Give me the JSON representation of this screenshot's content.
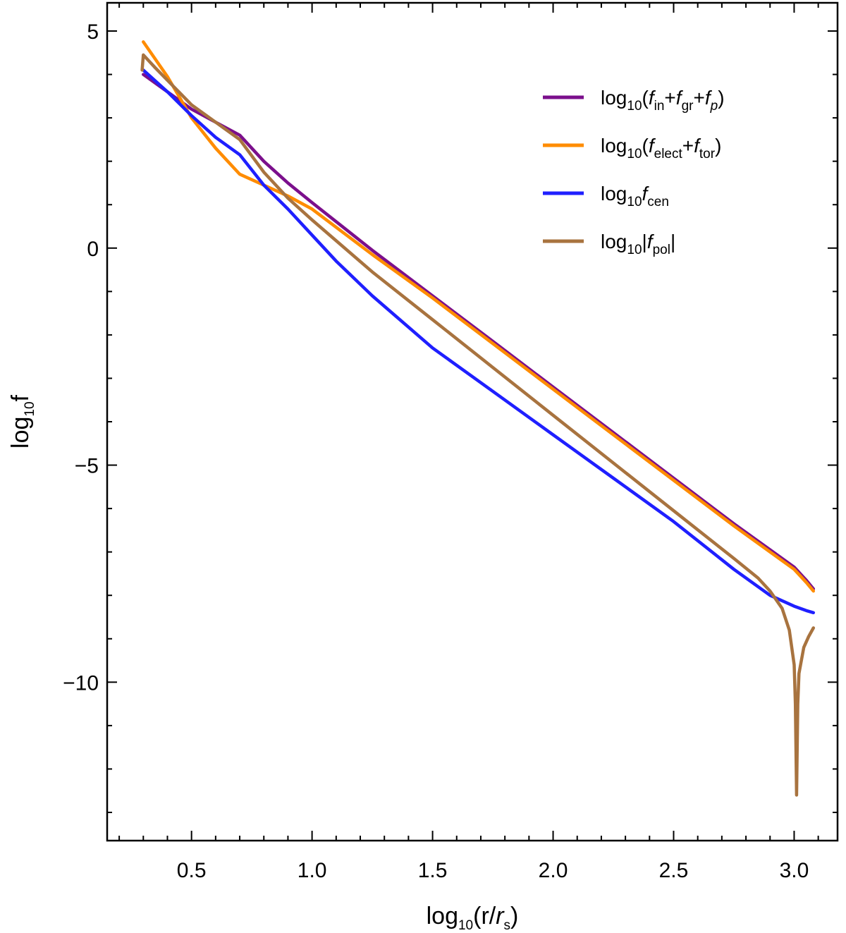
{
  "chart_data": {
    "type": "line",
    "xlabel": {
      "prefix": "log",
      "sub": "10",
      "open": "(r/",
      "var": "r",
      "varsub": "s",
      "close": ")"
    },
    "ylabel": {
      "prefix": "log",
      "sub": "10",
      "rest": "f"
    },
    "xlim": [
      0.15,
      3.18
    ],
    "ylim": [
      -13.65,
      5.65
    ],
    "x_ticks": [
      0.5,
      1.0,
      1.5,
      2.0,
      2.5,
      3.0
    ],
    "x_tick_labels": [
      "0.5",
      "1.0",
      "1.5",
      "2.0",
      "2.5",
      "3.0"
    ],
    "y_ticks": [
      5,
      0,
      -5,
      -10
    ],
    "y_tick_labels": [
      "5",
      "0",
      "−5",
      "−10"
    ],
    "x_minor_step": 0.1,
    "y_minor_step": 1,
    "grid": false,
    "legend_position": "top-right",
    "series": [
      {
        "key": "sum_inertial",
        "color": "#7b0f8c",
        "x": [
          0.3,
          0.4,
          0.5,
          0.6,
          0.7,
          0.8,
          0.9,
          1.0,
          1.25,
          1.5,
          1.75,
          2.0,
          2.25,
          2.5,
          2.75,
          2.9,
          3.0,
          3.05,
          3.08
        ],
        "y": [
          4.0,
          3.6,
          3.2,
          2.9,
          2.6,
          2.0,
          1.5,
          1.05,
          -0.05,
          -1.1,
          -2.15,
          -3.2,
          -4.25,
          -5.3,
          -6.35,
          -6.95,
          -7.35,
          -7.65,
          -7.85
        ]
      },
      {
        "key": "elect_tor",
        "color": "#ff8c00",
        "x": [
          0.3,
          0.4,
          0.5,
          0.6,
          0.7,
          0.8,
          0.9,
          1.0,
          1.25,
          1.5,
          1.75,
          2.0,
          2.25,
          2.5,
          2.75,
          2.9,
          3.0,
          3.05,
          3.08
        ],
        "y": [
          4.75,
          3.95,
          3.0,
          2.3,
          1.7,
          1.45,
          1.2,
          0.9,
          -0.15,
          -1.15,
          -2.2,
          -3.25,
          -4.3,
          -5.35,
          -6.4,
          -7.0,
          -7.4,
          -7.7,
          -7.9
        ]
      },
      {
        "key": "centrifugal",
        "color": "#1f1fff",
        "x": [
          0.3,
          0.4,
          0.5,
          0.6,
          0.7,
          0.8,
          0.9,
          1.0,
          1.1,
          1.25,
          1.5,
          1.75,
          2.0,
          2.25,
          2.5,
          2.75,
          2.9,
          3.0,
          3.05,
          3.08
        ],
        "y": [
          4.1,
          3.6,
          3.05,
          2.55,
          2.15,
          1.45,
          0.9,
          0.3,
          -0.3,
          -1.1,
          -2.3,
          -3.3,
          -4.3,
          -5.3,
          -6.3,
          -7.4,
          -8.0,
          -8.25,
          -8.35,
          -8.4
        ]
      },
      {
        "key": "poloidal",
        "color": "#a8733f",
        "x": [
          0.295,
          0.3,
          0.35,
          0.5,
          0.7,
          0.8,
          0.9,
          1.0,
          1.25,
          1.5,
          1.75,
          2.0,
          2.25,
          2.5,
          2.75,
          2.85,
          2.9,
          2.95,
          2.98,
          3.0,
          3.005,
          3.01,
          3.015,
          3.02,
          3.04,
          3.06,
          3.08
        ],
        "y": [
          4.1,
          4.45,
          4.15,
          3.3,
          2.5,
          1.75,
          1.15,
          0.65,
          -0.55,
          -1.65,
          -2.75,
          -3.85,
          -4.95,
          -6.05,
          -7.15,
          -7.6,
          -7.9,
          -8.3,
          -8.8,
          -9.6,
          -10.5,
          -12.6,
          -10.5,
          -9.8,
          -9.2,
          -8.95,
          -8.75
        ]
      }
    ],
    "legend": [
      {
        "series": "sum_inertial",
        "parts": [
          {
            "t": "log"
          },
          {
            "t": "10",
            "sub": true
          },
          {
            "t": "("
          },
          {
            "t": "f",
            "it": true
          },
          {
            "t": "in",
            "sub": true
          },
          {
            "t": "+"
          },
          {
            "t": "f",
            "it": true
          },
          {
            "t": "gr",
            "sub": true
          },
          {
            "t": "+"
          },
          {
            "t": "f",
            "it": true
          },
          {
            "t": "p",
            "sub": true,
            "it": true
          },
          {
            "t": ")"
          }
        ]
      },
      {
        "series": "elect_tor",
        "parts": [
          {
            "t": "log"
          },
          {
            "t": "10",
            "sub": true
          },
          {
            "t": "("
          },
          {
            "t": "f",
            "it": true
          },
          {
            "t": "elect",
            "sub": true
          },
          {
            "t": "+"
          },
          {
            "t": "f",
            "it": true
          },
          {
            "t": "tor",
            "sub": true
          },
          {
            "t": ")"
          }
        ]
      },
      {
        "series": "centrifugal",
        "parts": [
          {
            "t": "log"
          },
          {
            "t": "10",
            "sub": true
          },
          {
            "t": "f",
            "it": true
          },
          {
            "t": "cen",
            "sub": true
          }
        ]
      },
      {
        "series": "poloidal",
        "parts": [
          {
            "t": "log"
          },
          {
            "t": "10",
            "sub": true
          },
          {
            "t": "|"
          },
          {
            "t": "f",
            "it": true
          },
          {
            "t": "pol",
            "sub": true
          },
          {
            "t": "|"
          }
        ]
      }
    ]
  }
}
